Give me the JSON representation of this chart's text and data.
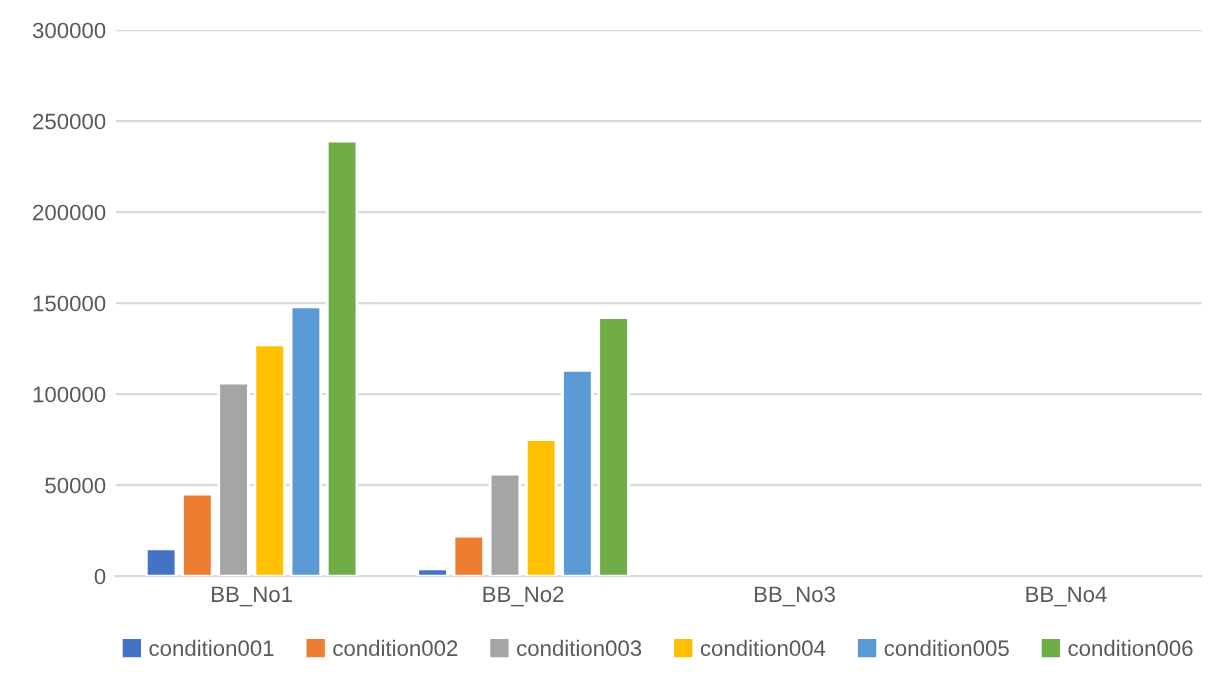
{
  "chart_data": {
    "type": "bar",
    "categories": [
      "BB_No1",
      "BB_No2",
      "BB_No3",
      "BB_No4"
    ],
    "series": [
      {
        "name": "condition001",
        "color": "#4472c4",
        "values": [
          15000,
          4000,
          null,
          null
        ]
      },
      {
        "name": "condition002",
        "color": "#ed7d31",
        "values": [
          45000,
          22000,
          null,
          null
        ]
      },
      {
        "name": "condition003",
        "color": "#a5a5a5",
        "values": [
          106000,
          56000,
          null,
          null
        ]
      },
      {
        "name": "condition004",
        "color": "#ffc000",
        "values": [
          127000,
          75000,
          null,
          null
        ]
      },
      {
        "name": "condition005",
        "color": "#5b9bd5",
        "values": [
          148000,
          113000,
          null,
          null
        ]
      },
      {
        "name": "condition006",
        "color": "#70ad47",
        "values": [
          239000,
          142000,
          null,
          null
        ]
      }
    ],
    "ylim": [
      0,
      300000
    ],
    "yticks": [
      0,
      50000,
      100000,
      150000,
      200000,
      250000,
      300000
    ],
    "grid": "y",
    "legend": "bottom"
  }
}
